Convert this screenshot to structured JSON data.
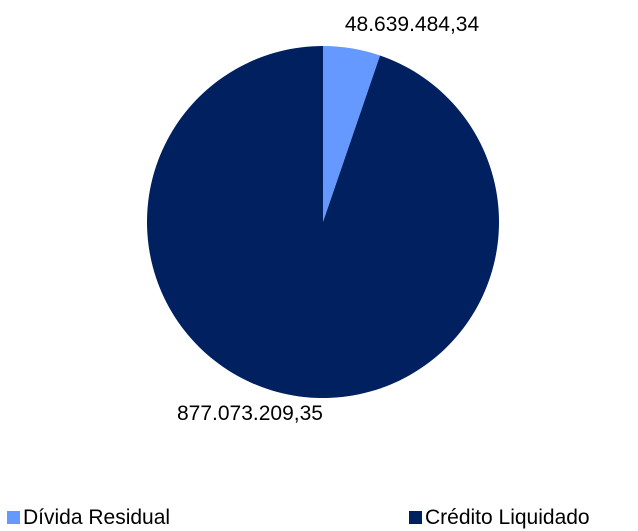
{
  "chart_data": {
    "type": "pie",
    "title": "",
    "series": [
      {
        "name": "Dívida Residual",
        "value": 48639484.34,
        "label": "48.639.484,34",
        "color": "#6699ff"
      },
      {
        "name": "Crédito Liquidado",
        "value": 877073209.35,
        "label": "877.073.209,35",
        "color": "#002060"
      }
    ],
    "legend": {
      "position": "bottom",
      "entries": [
        "Dívida Residual",
        "Crédito Liquidado"
      ]
    }
  }
}
